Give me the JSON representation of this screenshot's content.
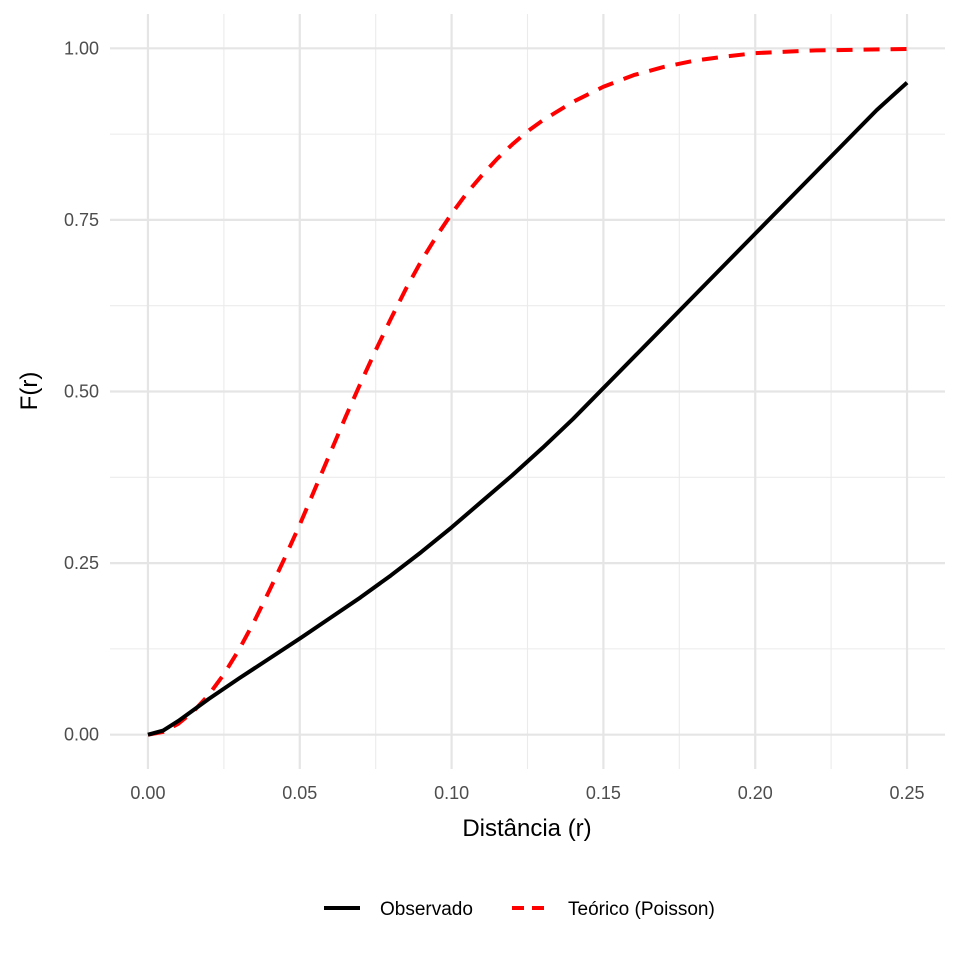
{
  "chart_data": {
    "type": "line",
    "xlabel": "Distância (r)",
    "ylabel": "F(r)",
    "xlim": [
      -0.0125,
      0.2625
    ],
    "ylim": [
      -0.05,
      1.05
    ],
    "x_ticks": [
      0.0,
      0.05,
      0.1,
      0.15,
      0.2,
      0.25
    ],
    "x_tick_labels": [
      "0.00",
      "0.05",
      "0.10",
      "0.15",
      "0.20",
      "0.25"
    ],
    "y_ticks": [
      0.0,
      0.25,
      0.5,
      0.75,
      1.0
    ],
    "y_tick_labels": [
      "0.00",
      "0.25",
      "0.50",
      "0.75",
      "1.00"
    ],
    "grid": true,
    "legend_position": "bottom",
    "series": [
      {
        "name": "Observado",
        "color": "#000000",
        "style": "solid",
        "x": [
          0.0,
          0.005,
          0.01,
          0.015,
          0.02,
          0.03,
          0.04,
          0.05,
          0.06,
          0.07,
          0.08,
          0.09,
          0.1,
          0.11,
          0.12,
          0.13,
          0.14,
          0.15,
          0.16,
          0.17,
          0.18,
          0.19,
          0.2,
          0.21,
          0.22,
          0.23,
          0.24,
          0.25
        ],
        "y": [
          0.0,
          0.006,
          0.02,
          0.036,
          0.052,
          0.082,
          0.111,
          0.14,
          0.17,
          0.2,
          0.232,
          0.266,
          0.302,
          0.34,
          0.378,
          0.418,
          0.46,
          0.505,
          0.55,
          0.595,
          0.64,
          0.685,
          0.73,
          0.775,
          0.82,
          0.865,
          0.91,
          0.95
        ]
      },
      {
        "name": "Teórico (Poisson)",
        "color": "#ff0000",
        "style": "dashed",
        "x": [
          0.0,
          0.005,
          0.01,
          0.015,
          0.02,
          0.025,
          0.03,
          0.035,
          0.04,
          0.045,
          0.05,
          0.055,
          0.06,
          0.065,
          0.07,
          0.075,
          0.08,
          0.085,
          0.09,
          0.095,
          0.1,
          0.105,
          0.11,
          0.115,
          0.12,
          0.125,
          0.13,
          0.14,
          0.15,
          0.16,
          0.17,
          0.18,
          0.19,
          0.2,
          0.22,
          0.25
        ],
        "y": [
          0.0,
          0.004,
          0.016,
          0.034,
          0.058,
          0.088,
          0.124,
          0.165,
          0.21,
          0.257,
          0.306,
          0.358,
          0.41,
          0.462,
          0.512,
          0.56,
          0.606,
          0.65,
          0.69,
          0.726,
          0.759,
          0.789,
          0.815,
          0.839,
          0.86,
          0.879,
          0.895,
          0.922,
          0.944,
          0.961,
          0.973,
          0.982,
          0.988,
          0.993,
          0.997,
          0.999
        ]
      }
    ]
  }
}
